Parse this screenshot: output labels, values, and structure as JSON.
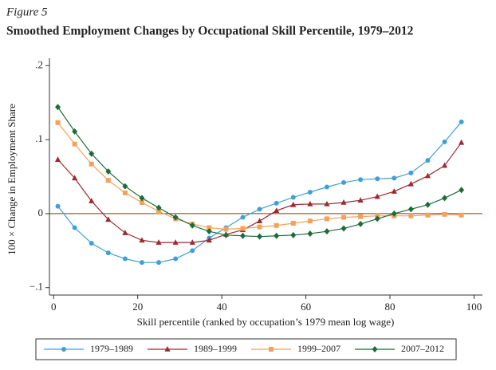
{
  "chart_data": {
    "type": "line",
    "figure_label": "Figure 5",
    "title": "Smoothed Employment Changes by Occupational Skill Percentile, 1979–2012",
    "x_label": "Skill percentile (ranked by occupation’s 1979 mean log wage)",
    "y_label": "100 × Change in Employment Share",
    "x": [
      1,
      5,
      9,
      13,
      17,
      21,
      25,
      29,
      33,
      37,
      41,
      45,
      49,
      53,
      57,
      61,
      65,
      69,
      73,
      77,
      81,
      85,
      89,
      93,
      97
    ],
    "series": [
      {
        "name": "1979–1989",
        "color": "#3fa0d8",
        "marker": "circle",
        "values": [
          0.01,
          -0.019,
          -0.04,
          -0.053,
          -0.061,
          -0.066,
          -0.066,
          -0.061,
          -0.05,
          -0.033,
          -0.019,
          -0.005,
          0.006,
          0.014,
          0.022,
          0.029,
          0.036,
          0.042,
          0.046,
          0.047,
          0.048,
          0.055,
          0.072,
          0.097,
          0.124
        ]
      },
      {
        "name": "1989–1999",
        "color": "#9b2a30",
        "marker": "triangle",
        "values": [
          0.073,
          0.048,
          0.017,
          -0.008,
          -0.026,
          -0.036,
          -0.039,
          -0.039,
          -0.039,
          -0.036,
          -0.028,
          -0.022,
          -0.01,
          0.004,
          0.012,
          0.013,
          0.013,
          0.015,
          0.018,
          0.023,
          0.03,
          0.04,
          0.051,
          0.065,
          0.096
        ]
      },
      {
        "name": "1999–2007",
        "color": "#f4a25a",
        "marker": "square",
        "values": [
          0.123,
          0.094,
          0.067,
          0.045,
          0.028,
          0.015,
          0.003,
          -0.007,
          -0.014,
          -0.019,
          -0.021,
          -0.02,
          -0.018,
          -0.016,
          -0.013,
          -0.01,
          -0.007,
          -0.005,
          -0.004,
          -0.003,
          -0.003,
          -0.003,
          -0.002,
          -0.001,
          -0.002
        ]
      },
      {
        "name": "2007–2012",
        "color": "#1e6b3a",
        "marker": "diamond",
        "values": [
          0.144,
          0.111,
          0.081,
          0.057,
          0.037,
          0.021,
          0.008,
          -0.005,
          -0.016,
          -0.024,
          -0.029,
          -0.03,
          -0.031,
          -0.03,
          -0.029,
          -0.027,
          -0.024,
          -0.02,
          -0.014,
          -0.007,
          0.0,
          0.006,
          0.012,
          0.021,
          0.032
        ]
      }
    ],
    "xlim": [
      -1,
      102
    ],
    "xticks": [
      0,
      20,
      40,
      60,
      80,
      100
    ],
    "ylim": [
      -0.11,
      0.21
    ],
    "yticks": [
      {
        "value": -0.1,
        "label": "−.1"
      },
      0,
      {
        "value": 0.1,
        "label": ".1"
      },
      {
        "value": 0.2,
        "label": ".2"
      }
    ],
    "reference_line": {
      "value": 0,
      "color": "#b22222"
    },
    "legend": "bottom"
  }
}
